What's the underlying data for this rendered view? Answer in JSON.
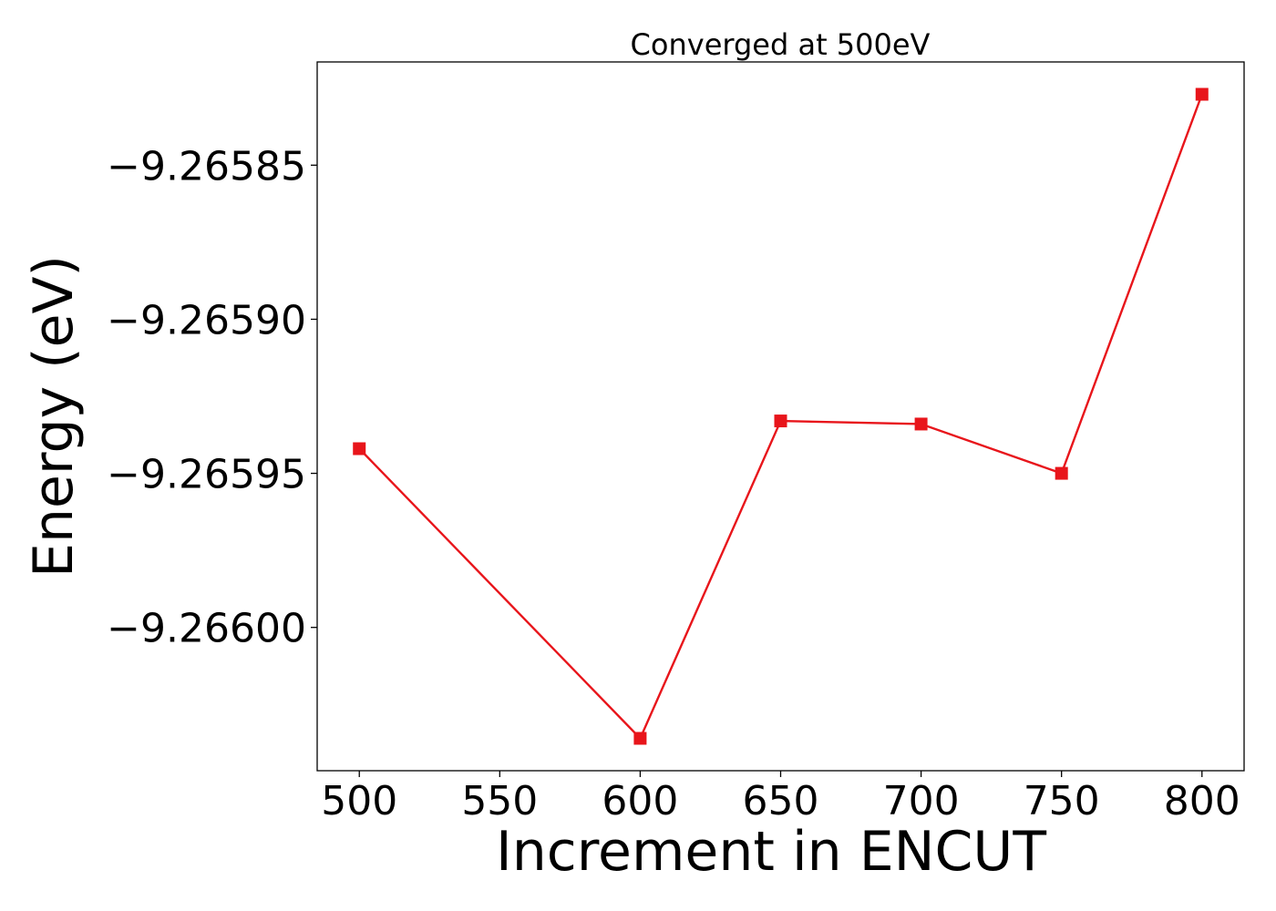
{
  "chart_data": {
    "type": "line",
    "title": "Converged at 500eV",
    "xlabel": "Increment in ENCUT",
    "ylabel": "Energy (eV)",
    "x": [
      500,
      600,
      650,
      700,
      750,
      800
    ],
    "series": [
      {
        "values": [
          -9.265942,
          -9.266036,
          -9.265933,
          -9.265934,
          -9.26595,
          -9.265827
        ],
        "color": "#e8151b",
        "marker": "square"
      }
    ],
    "xlim": [
      485,
      815
    ],
    "ylim": [
      -9.2660465,
      -9.2658165
    ],
    "xticks": [
      500,
      550,
      600,
      650,
      700,
      750,
      800
    ],
    "xtick_labels": [
      "500",
      "550",
      "600",
      "650",
      "700",
      "750",
      "800"
    ],
    "yticks": [
      -9.26585,
      -9.2659,
      -9.26595,
      -9.266
    ],
    "ytick_labels": [
      "−9.26585",
      "−9.26590",
      "−9.26595",
      "−9.26600"
    ],
    "grid": false,
    "legend": "none"
  }
}
